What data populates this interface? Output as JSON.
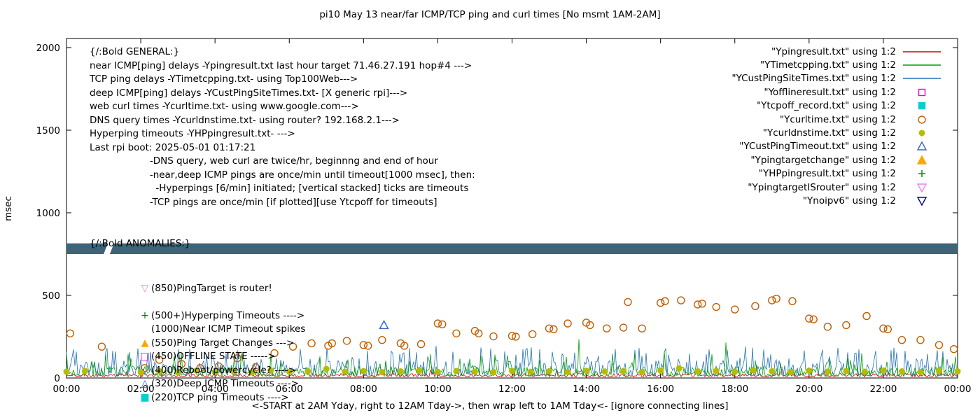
{
  "title": "pi10 May 13  near/far ICMP/TCP ping and curl times [No msmt 1AM-2AM]",
  "y_axis_label": "msec",
  "x_axis_label": "<-START at 2AM Yday, right to 12AM Tday->, then wrap left to 1AM Tday<- [ignore connecting lines]",
  "chart_data": {
    "type": "line",
    "x_range": [
      0,
      24
    ],
    "y_range": [
      0,
      2000
    ],
    "x_ticks": [
      {
        "v": 0,
        "label": "00:00"
      },
      {
        "v": 2,
        "label": "02:00"
      },
      {
        "v": 4,
        "label": "04:00"
      },
      {
        "v": 6,
        "label": "06:00"
      },
      {
        "v": 8,
        "label": "08:00"
      },
      {
        "v": 10,
        "label": "10:00"
      },
      {
        "v": 12,
        "label": "12:00"
      },
      {
        "v": 14,
        "label": "14:00"
      },
      {
        "v": 16,
        "label": "16:00"
      },
      {
        "v": 18,
        "label": "18:00"
      },
      {
        "v": 20,
        "label": "20:00"
      },
      {
        "v": 22,
        "label": "22:00"
      },
      {
        "v": 24,
        "label": "00:00"
      }
    ],
    "y_ticks": [
      0,
      500,
      1000,
      1500,
      2000
    ],
    "legend": [
      {
        "label": "\"Ypingresult.txt\" using 1:2",
        "marker": "line",
        "color": "#d40000"
      },
      {
        "label": "\"YTimetcpping.txt\" using 1:2",
        "marker": "line",
        "color": "#00a000"
      },
      {
        "label": "\"YCustPingSiteTimes.txt\" using 1:2",
        "marker": "line",
        "color": "#2171b5"
      },
      {
        "label": "\"Yofflineresult.txt\" using 1:2",
        "marker": "square-open",
        "color": "#e400e4"
      },
      {
        "label": "\"Ytcpoff_record.txt\" using 1:2",
        "marker": "square-filled",
        "color": "#00d0d0"
      },
      {
        "label": "\"Ycurltime.txt\" using 1:2",
        "marker": "circle-open",
        "color": "#c25e00"
      },
      {
        "label": "\"Ycurldnstime.txt\" using 1:2",
        "marker": "circle-filled",
        "color": "#b8bc00"
      },
      {
        "label": "\"YCustPingTimeout.txt\" using 1:2",
        "marker": "tri-up-open",
        "color": "#3465cd"
      },
      {
        "label": "\"Ypingtargetchange\" using 1:2",
        "marker": "tri-up-filled",
        "color": "#ffa500"
      },
      {
        "label": "\"YHPpingresult.txt\" using 1:2",
        "marker": "plus",
        "color": "#008000"
      },
      {
        "label": "\"YpingtargetISrouter\" using 1:2",
        "marker": "tri-down-open",
        "color": "#ee82ee"
      },
      {
        "label": "\"Ynoipv6\" using 1:2",
        "marker": "tri-down-open",
        "color": "#00008b"
      }
    ],
    "annotations": {
      "general_lines": [
        "{/:Bold GENERAL:}",
        "near ICMP[ping] delays -Ypingresult.txt last hour target 71.46.27.191 hop#4 --->",
        "TCP ping delays -YTimetcpping.txt- using Top100Web--->",
        "deep ICMP[ping] delays -YCustPingSiteTimes.txt- [X generic rpi]--->",
        "web curl times -Ycurltime.txt- using www.google.com--->",
        "DNS query times -Ycurldnstime.txt- using router? 192.168.2.1--->",
        "Hyperping timeouts -YHPpingresult.txt- --->",
        "Last rpi boot: 2025-05-01 01:17:21",
        "                    -DNS query, web curl are twice/hr, beginnng and end of hour",
        "                    -near,deep ICMP pings are once/min until timeout[1000 msec], then:",
        "                      -Hyperpings [6/min] initiated; [vertical stacked] ticks are timeouts",
        "                    -TCP pings are once/min [if plotted][use Ytcpoff for timeouts]"
      ],
      "anomalies_header": "{/:Bold ANOMALIES:}",
      "anomalies_items": [
        {
          "glyph": "▽",
          "color": "#ee82ee",
          "text": "(850)PingTarget is router!"
        },
        {
          "glyph": "",
          "color": "",
          "text": ""
        },
        {
          "glyph": "+",
          "color": "#008000",
          "text": "(500+)Hyperping Timeouts ---->"
        },
        {
          "glyph": "",
          "color": "",
          "text": "(1000)Near ICMP Timeout spikes"
        },
        {
          "glyph": "▲",
          "color": "#ffa500",
          "text": "(550)Ping Target Changes --->"
        },
        {
          "glyph": "□",
          "color": "#e400e4",
          "text": "(450)OFFLINE STATE ----->"
        },
        {
          "glyph": "",
          "color": "",
          "text": "(400)Reboot/powercycle? ---->"
        },
        {
          "glyph": "△",
          "color": "#3465cd",
          "text": "(320)Deep ICMP Timeouts ---->"
        },
        {
          "glyph": "■",
          "color": "#00d0d0",
          "text": "(220)TCP ping Timeouts ---->"
        }
      ]
    },
    "band": {
      "name": "Ynoipv6",
      "y_from": 750,
      "y_to": 815,
      "gap_hours": [
        1.0,
        1.28
      ],
      "color": "#3d6478"
    },
    "line_series": [
      {
        "name": "Ypingresult.txt",
        "color": "#d40000",
        "seed": 11,
        "min": 8,
        "max": 28,
        "spike_chance": 0.015,
        "spike_max": 60,
        "spikes": []
      },
      {
        "name": "YCustPingSiteTimes.txt",
        "color": "#2171b5",
        "seed": 23,
        "min": 14,
        "max": 110,
        "spike_chance": 0.11,
        "spike_max": 185,
        "spikes": [
          [
            6.3,
            175
          ],
          [
            9.95,
            195
          ],
          [
            12.5,
            185
          ],
          [
            15.3,
            170
          ],
          [
            18.3,
            190
          ],
          [
            22.6,
            165
          ]
        ]
      },
      {
        "name": "YTimetcpping.txt",
        "color": "#00a000",
        "seed": 7,
        "min": 10,
        "max": 70,
        "spike_chance": 0.09,
        "spike_max": 150,
        "spikes": [
          [
            3.1,
            155
          ],
          [
            13.8,
            235
          ],
          [
            16.1,
            160
          ],
          [
            17.75,
            215
          ],
          [
            21.4,
            150
          ]
        ]
      }
    ],
    "scatter_series": [
      {
        "name": "Ycurltime.txt",
        "marker": "circle-open",
        "color": "#c25e00",
        "points": [
          [
            0.1,
            270
          ],
          [
            0.95,
            190
          ],
          [
            2.1,
            60
          ],
          [
            2.5,
            110
          ],
          [
            3.1,
            85
          ],
          [
            3.6,
            60
          ],
          [
            4.1,
            70
          ],
          [
            4.6,
            120
          ],
          [
            5.1,
            65
          ],
          [
            5.6,
            150
          ],
          [
            6.1,
            190
          ],
          [
            6.6,
            210
          ],
          [
            7.05,
            195
          ],
          [
            7.15,
            210
          ],
          [
            7.55,
            225
          ],
          [
            8.0,
            200
          ],
          [
            8.12,
            195
          ],
          [
            8.5,
            230
          ],
          [
            9.0,
            210
          ],
          [
            9.1,
            195
          ],
          [
            9.55,
            205
          ],
          [
            10.0,
            330
          ],
          [
            10.12,
            325
          ],
          [
            10.5,
            270
          ],
          [
            11.0,
            285
          ],
          [
            11.1,
            270
          ],
          [
            11.5,
            252
          ],
          [
            12.0,
            255
          ],
          [
            12.1,
            250
          ],
          [
            12.55,
            265
          ],
          [
            13.0,
            300
          ],
          [
            13.12,
            295
          ],
          [
            13.5,
            330
          ],
          [
            14.0,
            335
          ],
          [
            14.1,
            320
          ],
          [
            14.55,
            300
          ],
          [
            15.0,
            305
          ],
          [
            15.12,
            460
          ],
          [
            15.5,
            300
          ],
          [
            16.0,
            455
          ],
          [
            16.12,
            465
          ],
          [
            16.55,
            470
          ],
          [
            17.0,
            445
          ],
          [
            17.12,
            450
          ],
          [
            17.5,
            430
          ],
          [
            18.0,
            415
          ],
          [
            18.55,
            435
          ],
          [
            19.0,
            470
          ],
          [
            19.12,
            480
          ],
          [
            19.55,
            465
          ],
          [
            20.0,
            360
          ],
          [
            20.12,
            355
          ],
          [
            20.5,
            310
          ],
          [
            21.0,
            320
          ],
          [
            21.55,
            375
          ],
          [
            22.0,
            300
          ],
          [
            22.12,
            295
          ],
          [
            22.5,
            230
          ],
          [
            23.0,
            230
          ],
          [
            23.5,
            200
          ],
          [
            23.9,
            175
          ]
        ]
      },
      {
        "name": "Ycurldnstime.txt",
        "marker": "circle-filled",
        "color": "#b8bc00",
        "points": [
          [
            0.0,
            38
          ],
          [
            0.5,
            42
          ],
          [
            2.0,
            35
          ],
          [
            2.5,
            40
          ],
          [
            3.0,
            33
          ],
          [
            3.5,
            45
          ],
          [
            4.0,
            36
          ],
          [
            4.5,
            40
          ],
          [
            5.0,
            34
          ],
          [
            5.5,
            44
          ],
          [
            6.0,
            38
          ],
          [
            6.5,
            41
          ],
          [
            7.0,
            55
          ],
          [
            7.5,
            38
          ],
          [
            8.0,
            42
          ],
          [
            8.5,
            36
          ],
          [
            9.0,
            40
          ],
          [
            9.5,
            44
          ],
          [
            10.0,
            37
          ],
          [
            10.5,
            42
          ],
          [
            11.0,
            39
          ],
          [
            11.5,
            35
          ],
          [
            12.0,
            43
          ],
          [
            12.5,
            38
          ],
          [
            13.0,
            41
          ],
          [
            13.5,
            36
          ],
          [
            14.0,
            44
          ],
          [
            14.5,
            39
          ],
          [
            15.0,
            42
          ],
          [
            15.5,
            37
          ],
          [
            16.0,
            45
          ],
          [
            16.5,
            58
          ],
          [
            17.0,
            40
          ],
          [
            17.5,
            43
          ],
          [
            18.0,
            38
          ],
          [
            18.5,
            46
          ],
          [
            19.0,
            41
          ],
          [
            19.5,
            37
          ],
          [
            20.0,
            44
          ],
          [
            20.5,
            39
          ],
          [
            21.0,
            42
          ],
          [
            21.5,
            38
          ],
          [
            22.0,
            45
          ],
          [
            22.5,
            40
          ],
          [
            23.0,
            36
          ],
          [
            23.5,
            43
          ],
          [
            24.0,
            40
          ]
        ]
      },
      {
        "name": "YCustPingTimeout.txt",
        "marker": "tri-up-open",
        "color": "#3465cd",
        "points": [
          [
            8.55,
            320
          ]
        ]
      }
    ]
  }
}
